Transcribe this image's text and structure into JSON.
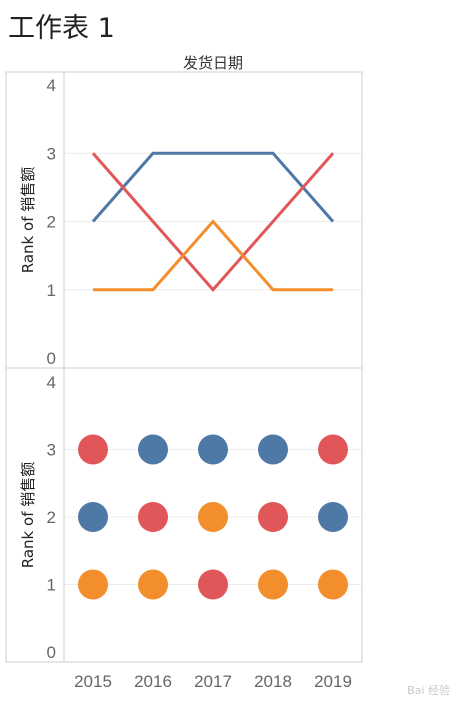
{
  "sheet": {
    "title": "工作表 1"
  },
  "column_header": "发货日期",
  "watermark": "Bai 经验",
  "colors": {
    "blue": "#4e79a7",
    "red": "#e15759",
    "orange": "#f28e2b",
    "grid": "#ececec",
    "border": "#cfcfcf"
  },
  "chart_data": [
    {
      "type": "line",
      "ylabel": "Rank of 销售额",
      "xlabel": "",
      "ylim": [
        0,
        4
      ],
      "yticks": [
        "0",
        "1",
        "2",
        "3",
        "4"
      ],
      "x": [
        "2015",
        "2016",
        "2017",
        "2018",
        "2019"
      ],
      "grid": true,
      "series": [
        {
          "color": "#4e79a7",
          "values": [
            2,
            3,
            3,
            3,
            2
          ]
        },
        {
          "color": "#e15759",
          "values": [
            3,
            2,
            1,
            2,
            3
          ]
        },
        {
          "color": "#f28e2b",
          "values": [
            1,
            1,
            2,
            1,
            1
          ]
        }
      ]
    },
    {
      "type": "scatter",
      "ylabel": "Rank of 销售额",
      "xlabel": "",
      "ylim": [
        0,
        4
      ],
      "yticks": [
        "0",
        "1",
        "2",
        "3",
        "4"
      ],
      "x": [
        "2015",
        "2016",
        "2017",
        "2018",
        "2019"
      ],
      "grid": true,
      "series": [
        {
          "color": "#4e79a7",
          "values": [
            2,
            3,
            3,
            3,
            2
          ]
        },
        {
          "color": "#e15759",
          "values": [
            3,
            2,
            1,
            2,
            3
          ]
        },
        {
          "color": "#f28e2b",
          "values": [
            1,
            1,
            2,
            1,
            1
          ]
        }
      ]
    }
  ]
}
